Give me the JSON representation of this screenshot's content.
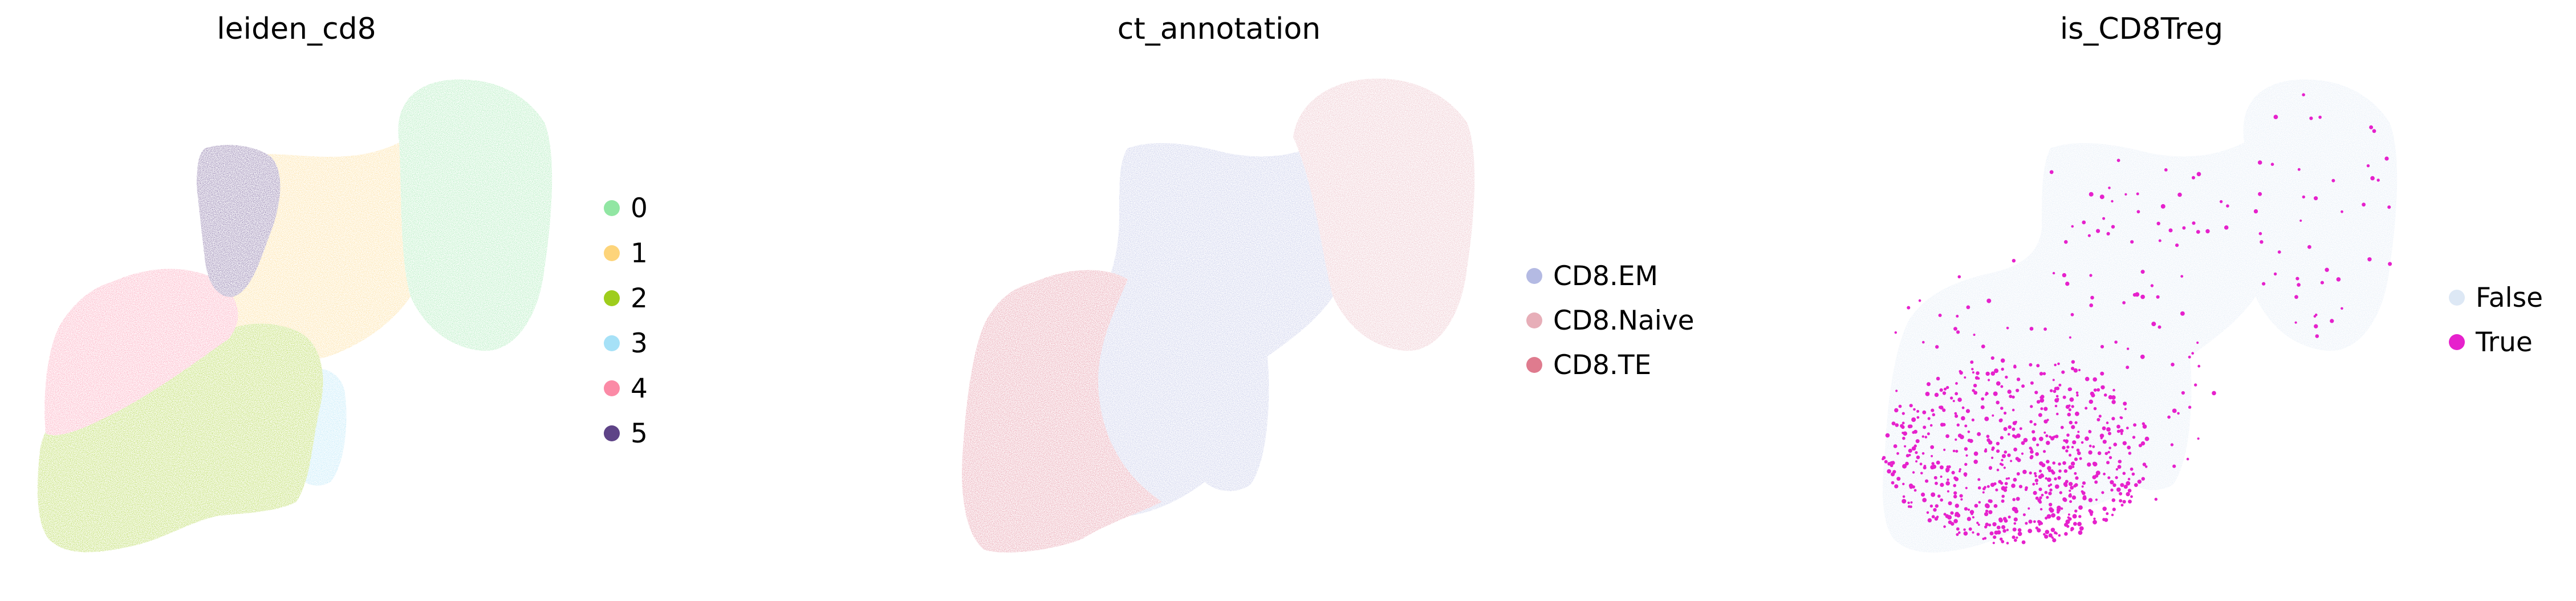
{
  "chart_data": [
    {
      "type": "scatter",
      "title": "leiden_cd8",
      "xlabel": "",
      "ylabel": "",
      "grid": false,
      "legend": {
        "placement": "right",
        "entries": [
          {
            "label": "0",
            "color": "#91e6a3"
          },
          {
            "label": "1",
            "color": "#fdd47a"
          },
          {
            "label": "2",
            "color": "#9ecd1c"
          },
          {
            "label": "3",
            "color": "#a6e1f7"
          },
          {
            "label": "4",
            "color": "#fb8aa6"
          },
          {
            "label": "5",
            "color": "#5e4387"
          }
        ]
      },
      "series": [
        {
          "name": "0",
          "color": "#91e6a3"
        },
        {
          "name": "1",
          "color": "#fdd47a"
        },
        {
          "name": "2",
          "color": "#9ecd1c"
        },
        {
          "name": "3",
          "color": "#a6e1f7"
        },
        {
          "name": "4",
          "color": "#fb8aa6"
        },
        {
          "name": "5",
          "color": "#5e4387"
        }
      ]
    },
    {
      "type": "scatter",
      "title": "ct_annotation",
      "xlabel": "",
      "ylabel": "",
      "grid": false,
      "legend": {
        "placement": "right",
        "entries": [
          {
            "label": "CD8.EM",
            "color": "#b4bae3"
          },
          {
            "label": "CD8.Naive",
            "color": "#e7aeb8"
          },
          {
            "label": "CD8.TE",
            "color": "#df7b8e"
          }
        ]
      },
      "series": [
        {
          "name": "CD8.EM",
          "color": "#b4bae3"
        },
        {
          "name": "CD8.Naive",
          "color": "#e7aeb8"
        },
        {
          "name": "CD8.TE",
          "color": "#df7b8e"
        }
      ]
    },
    {
      "type": "scatter",
      "title": "is_CD8Treg",
      "xlabel": "",
      "ylabel": "",
      "grid": false,
      "legend": {
        "placement": "right",
        "entries": [
          {
            "label": "False",
            "color": "#dde8f5"
          },
          {
            "label": "True",
            "color": "#e621cc"
          }
        ]
      },
      "series": [
        {
          "name": "False",
          "color": "#dde8f5"
        },
        {
          "name": "True",
          "color": "#e621cc"
        }
      ]
    }
  ]
}
